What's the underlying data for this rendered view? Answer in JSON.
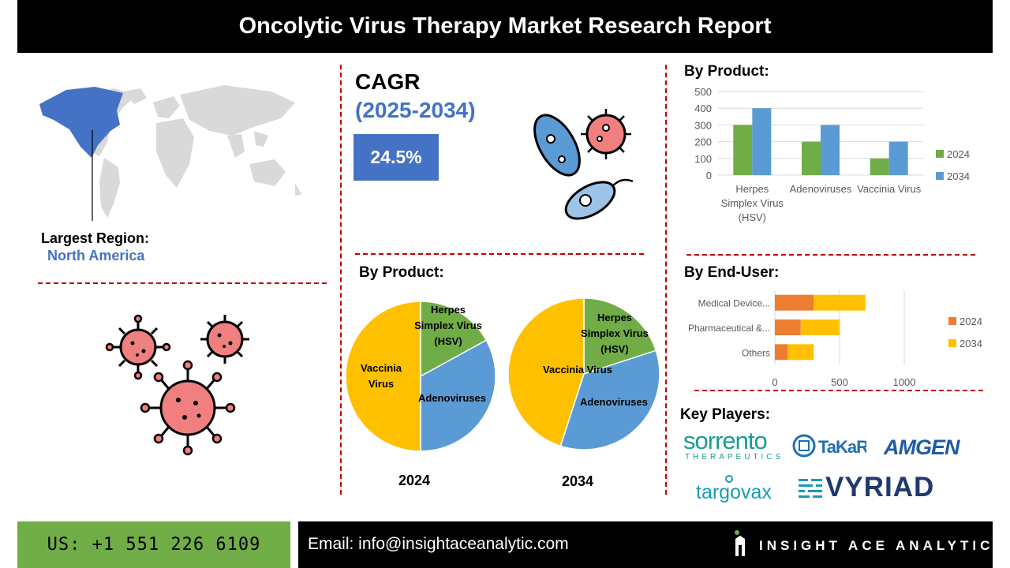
{
  "header": {
    "title": "Oncolytic Virus Therapy Market Research Report"
  },
  "region": {
    "label": "Largest Region:",
    "value": "North America"
  },
  "cagr": {
    "label": "CAGR",
    "years": "(2025-2034)",
    "value": "24.5%"
  },
  "by_product_label": "By Product:",
  "by_end_user_label": "By End-User:",
  "key_players": {
    "label": "Key Players:",
    "logos": [
      "sorrento",
      "THERAPEUTICS",
      "TaKaRa",
      "AMGEN",
      "targovax",
      "VYRIAD"
    ]
  },
  "footer": {
    "phone": "US: +1 551 226 6109",
    "email": "Email: info@insightaceanalytic.com",
    "brand": "INSIGHT ACE ANALYTIC"
  },
  "colors": {
    "green": "#70ad47",
    "blue": "#5b9bd5",
    "orange": "#ed7d31",
    "yellow": "#ffc000",
    "accent_blue": "#4472c4",
    "red_dash": "#c00000"
  },
  "chart_data": [
    {
      "type": "bar",
      "title": "By Product:",
      "categories": [
        "Herpes Simplex Virus (HSV)",
        "Adenoviruses",
        "Vaccinia Virus"
      ],
      "category_lines": [
        [
          "Herpes",
          "Simplex Virus",
          "(HSV)"
        ],
        [
          "Adenoviruses"
        ],
        [
          "Vaccinia Virus"
        ]
      ],
      "series": [
        {
          "name": "2024",
          "values": [
            300,
            200,
            100
          ],
          "color": "#70ad47"
        },
        {
          "name": "2034",
          "values": [
            400,
            300,
            200
          ],
          "color": "#5b9bd5"
        }
      ],
      "ylim": [
        0,
        500
      ],
      "yticks": [
        "0",
        "100",
        "200",
        "300",
        "400",
        "500"
      ],
      "grid": true,
      "legend": "right"
    },
    {
      "type": "pie",
      "caption": "2024",
      "labels": [
        "Herpes Simplex Virus (HSV)",
        "Adenoviruses",
        "Vaccinia Virus"
      ],
      "label_lines": [
        [
          "Herpes",
          "Simplex Virus",
          "(HSV)"
        ],
        [
          "Adenoviruses"
        ],
        [
          "Vaccinia",
          "Virus"
        ]
      ],
      "values": [
        17,
        33,
        50
      ],
      "colors": [
        "#70ad47",
        "#5b9bd5",
        "#ffc000"
      ]
    },
    {
      "type": "pie",
      "caption": "2034",
      "labels": [
        "Herpes Simplex Virus (HSV)",
        "Adenoviruses",
        "Vaccinia Virus"
      ],
      "label_lines": [
        [
          "Herpes",
          "Simplex Virus",
          "(HSV)"
        ],
        [
          "Adenoviruses"
        ],
        [
          "Vaccinia Virus"
        ]
      ],
      "values": [
        20,
        35,
        45
      ],
      "colors": [
        "#70ad47",
        "#5b9bd5",
        "#ffc000"
      ]
    },
    {
      "type": "bar",
      "orientation": "horizontal",
      "stacked": true,
      "title": "By End-User:",
      "categories": [
        "Medical Device...",
        "Pharmaceutical &...",
        "Others"
      ],
      "series": [
        {
          "name": "2024",
          "values": [
            300,
            200,
            100
          ],
          "color": "#ed7d31"
        },
        {
          "name": "2034",
          "values": [
            400,
            300,
            200
          ],
          "color": "#ffc000"
        }
      ],
      "xlim": [
        0,
        1000
      ],
      "xticks": [
        "0",
        "500",
        "1000"
      ],
      "grid": true,
      "legend": "right"
    }
  ]
}
